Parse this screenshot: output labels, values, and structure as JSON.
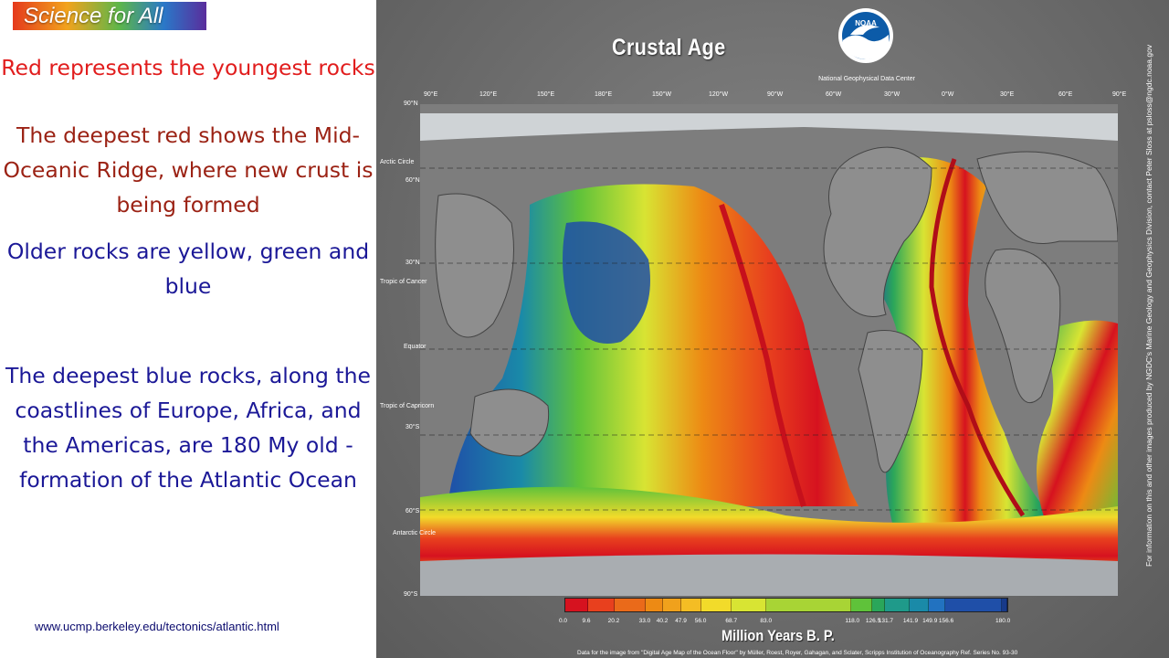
{
  "slide": {
    "logo_text": "Science for All",
    "text_red_1": "Red represents the youngest rocks",
    "text_red_2": "The deepest red shows the Mid-Oceanic Ridge, where new crust is being formed",
    "text_blue_1": "Older rocks are yellow, green and blue",
    "text_blue_2": "The deepest blue rocks, along the coastlines of Europe, Africa, and the Americas, are 180 My old - formation of the Atlantic Ocean",
    "url": "www.ucmp.berkeley.edu/tectonics/atlantic.html"
  },
  "poster": {
    "title": "Crustal Age",
    "agency_logo": "NOAA",
    "agency_subtitle": "National Geophysical Data Center",
    "longitude_labels": [
      "90°E",
      "120°E",
      "150°E",
      "180°E",
      "150°W",
      "120°W",
      "90°W",
      "60°W",
      "30°W",
      "0°W",
      "30°E",
      "60°E",
      "90°E"
    ],
    "latitude_labels": [
      "90°N",
      "60°N",
      "30°N",
      "30°S",
      "60°S",
      "90°S"
    ],
    "reference_lines": [
      "Arctic Circle",
      "Tropic of Cancer",
      "Equator",
      "Tropic of Capricorn",
      "Antarctic Circle"
    ],
    "side_credit": "For information on this and other images produced by NGDC's Marine Geology and Geophysics Division, contact Peter Sloss at psloss@ngdc.noaa.gov",
    "legend_title": "Million Years B. P.",
    "legend_ticks": [
      "0.0",
      "9.6",
      "20.2",
      "33.0",
      "40.2",
      "47.9",
      "56.0",
      "68.7",
      "83.0",
      "118.0",
      "126.5",
      "131.7",
      "141.9",
      "149.9",
      "156.6",
      "180.0"
    ],
    "legend_colors": [
      "#d6121f",
      "#e8401e",
      "#ea6a1a",
      "#ed8a14",
      "#f0a11c",
      "#f4bd24",
      "#f2db2a",
      "#d8e433",
      "#a8d435",
      "#5fc23a",
      "#2aa65a",
      "#1f9a8a",
      "#1a8aa8",
      "#2272c0",
      "#1f4fa8",
      "#173a8a"
    ],
    "footer_credit": "Data for the image from \"Digital Age Map of the Ocean Floor\" by Müller, Roest, Royer, Gahagan, and Sclater, Scripps Institution of Oceanography Ref. Series No. 93-30"
  },
  "colors": {
    "text_red": "#e11d1d",
    "text_dark_red": "#9b2214",
    "text_blue": "#1b1897",
    "land_gray": "#8e8e8e",
    "ocean_young": "#d6121f",
    "ocean_old": "#173a8a"
  }
}
